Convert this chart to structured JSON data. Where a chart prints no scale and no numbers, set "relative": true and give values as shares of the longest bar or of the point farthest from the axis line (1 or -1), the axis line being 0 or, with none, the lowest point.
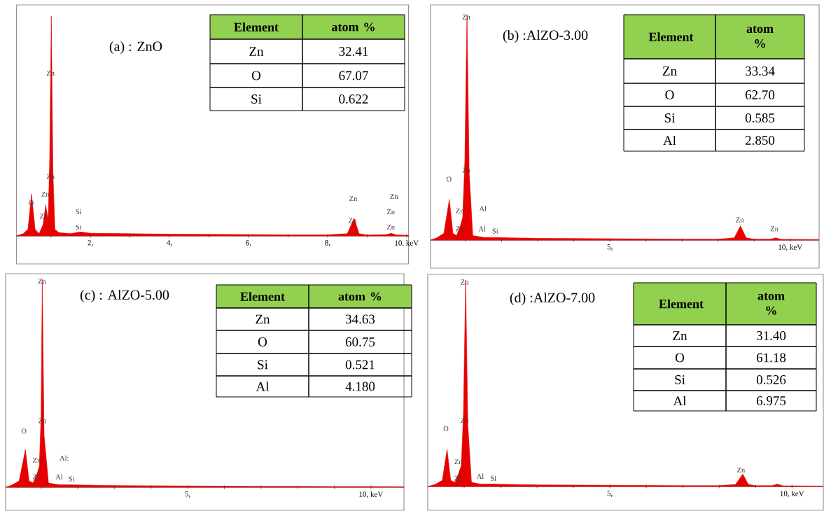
{
  "chart_data": [
    {
      "type": "area",
      "title": "(a) : ZnO",
      "relative": true,
      "color": "#e60000",
      "x": [
        0.13,
        0.3,
        0.42,
        0.51,
        0.6,
        0.7,
        0.8,
        0.87,
        0.93,
        0.97,
        1.01,
        1.05,
        1.1,
        1.2,
        1.5,
        1.74,
        2,
        3,
        4,
        5,
        6,
        7,
        8,
        8.5,
        8.67,
        8.8,
        9.0,
        9.5,
        9.61,
        9.75,
        10.05
      ],
      "values": [
        0,
        0.01,
        0.03,
        0.19,
        0.03,
        0.01,
        0.05,
        0.14,
        0.07,
        0.35,
        1,
        0.3,
        0.03,
        0.015,
        0.01,
        0.018,
        0.012,
        0.01,
        0.008,
        0.007,
        0.006,
        0.005,
        0.005,
        0.01,
        0.08,
        0.01,
        0.004,
        0.006,
        0.012,
        0.004,
        0.003
      ],
      "xlim": [
        0.13,
        10.05
      ],
      "xticks": [
        {
          "value": 1,
          "label": null
        },
        {
          "value": 2,
          "label": "2,"
        },
        {
          "value": 3,
          "label": null
        },
        {
          "value": 4,
          "label": "4,"
        },
        {
          "value": 5,
          "label": null
        },
        {
          "value": 6,
          "label": "6,"
        },
        {
          "value": 7,
          "label": null
        },
        {
          "value": 8,
          "label": "8,"
        },
        {
          "value": 9,
          "label": null
        },
        {
          "value": 10,
          "label": "10, keV"
        }
      ],
      "annotations": [
        "Element",
        "atom %",
        "Zn",
        "32.41",
        "O",
        "67.07",
        "Si",
        "0.622",
        "Zn",
        "Zn",
        "Zn",
        "O",
        "Zn",
        "Si",
        "Si",
        "Zn",
        "Zn",
        "Zn",
        "Zn",
        "Zn"
      ]
    },
    {
      "type": "area",
      "title": "(b) :AlZO-3.00",
      "relative": true,
      "color": "#e60000",
      "x": [
        0.03,
        0.2,
        0.4,
        0.55,
        0.65,
        0.75,
        0.85,
        0.92,
        0.98,
        1.04,
        1.1,
        1.2,
        1.5,
        1.86,
        2.2,
        3,
        4,
        5,
        6,
        7,
        8,
        8.45,
        8.62,
        8.78,
        9.0,
        9.45,
        9.6,
        9.75,
        10,
        10.8
      ],
      "values": [
        0,
        0.01,
        0.03,
        0.18,
        0.03,
        0.02,
        0.06,
        0.1,
        0.35,
        1,
        0.3,
        0.02,
        0.012,
        0.012,
        0.01,
        0.008,
        0.007,
        0.006,
        0.005,
        0.004,
        0.004,
        0.01,
        0.063,
        0.01,
        0.004,
        0.004,
        0.01,
        0.003,
        0.003,
        0.002
      ],
      "xlim": [
        0.03,
        10.8
      ],
      "xticks": [
        {
          "value": 1,
          "label": null
        },
        {
          "value": 2,
          "label": null
        },
        {
          "value": 3,
          "label": null
        },
        {
          "value": 4,
          "label": null
        },
        {
          "value": 5,
          "label": "5,"
        },
        {
          "value": 6,
          "label": null
        },
        {
          "value": 7,
          "label": null
        },
        {
          "value": 8,
          "label": null
        },
        {
          "value": 9,
          "label": null
        },
        {
          "value": 10,
          "label": "10, keV"
        }
      ],
      "annotations": [
        "Element",
        "atom %",
        "Zn",
        "33.34",
        "O",
        "62.70",
        "Si",
        "0.585",
        "Al",
        "2.850",
        "Zn",
        "Zn",
        "O",
        "Zn",
        "Zn",
        "Al",
        "Al",
        "Si",
        "Zn",
        "Zn"
      ]
    },
    {
      "type": "area",
      "title": "(c) : AlZO-5.00",
      "relative": true,
      "color": "#e60000",
      "x": [
        0.03,
        0.2,
        0.4,
        0.57,
        0.67,
        0.78,
        0.88,
        0.95,
        1.0,
        1.03,
        1.08,
        1.2,
        1.49,
        1.74,
        2.2,
        3,
        4,
        5,
        6,
        7,
        8,
        9,
        10,
        10.9
      ],
      "values": [
        0,
        0.01,
        0.03,
        0.18,
        0.03,
        0.02,
        0.06,
        0.1,
        0.35,
        1,
        0.25,
        0.02,
        0.012,
        0.012,
        0.01,
        0.008,
        0.007,
        0.006,
        0.005,
        0.004,
        0.004,
        0.003,
        0.003,
        0.002
      ],
      "xlim": [
        0.03,
        10.9
      ],
      "xticks": [
        {
          "value": 1,
          "label": null
        },
        {
          "value": 2,
          "label": null
        },
        {
          "value": 3,
          "label": null
        },
        {
          "value": 4,
          "label": null
        },
        {
          "value": 5,
          "label": "5,"
        },
        {
          "value": 6,
          "label": null
        },
        {
          "value": 7,
          "label": null
        },
        {
          "value": 8,
          "label": null
        },
        {
          "value": 9,
          "label": null
        },
        {
          "value": 10,
          "label": "10, keV"
        }
      ],
      "annotations": [
        "Element",
        "atom %",
        "Zn",
        "34.63",
        "O",
        "60.75",
        "Si",
        "0.521",
        "Al",
        "4.180",
        "Zn",
        "Zn",
        "O",
        "Zn",
        "Zn",
        "Al:",
        "Al",
        "Si"
      ]
    },
    {
      "type": "area",
      "title": "(d) :AlZO-7.00",
      "relative": true,
      "color": "#e60000",
      "x": [
        0,
        0.2,
        0.4,
        0.53,
        0.63,
        0.75,
        0.84,
        0.92,
        0.98,
        1.04,
        1.1,
        1.2,
        1.44,
        1.8,
        2.2,
        3,
        4,
        5,
        6,
        7,
        8,
        8.45,
        8.65,
        8.8,
        9.0,
        9.45,
        9.6,
        9.75,
        10,
        10.86
      ],
      "values": [
        0,
        0.01,
        0.03,
        0.18,
        0.03,
        0.02,
        0.06,
        0.1,
        0.35,
        1,
        0.3,
        0.02,
        0.012,
        0.012,
        0.01,
        0.008,
        0.007,
        0.006,
        0.005,
        0.004,
        0.004,
        0.01,
        0.06,
        0.01,
        0.004,
        0.004,
        0.012,
        0.003,
        0.003,
        0.002
      ],
      "xlim": [
        0,
        10.86
      ],
      "xticks": [
        {
          "value": 1,
          "label": null
        },
        {
          "value": 2,
          "label": null
        },
        {
          "value": 3,
          "label": null
        },
        {
          "value": 4,
          "label": null
        },
        {
          "value": 5,
          "label": "5,"
        },
        {
          "value": 6,
          "label": null
        },
        {
          "value": 7,
          "label": null
        },
        {
          "value": 8,
          "label": null
        },
        {
          "value": 9,
          "label": null
        },
        {
          "value": 10,
          "label": "10, keV"
        }
      ],
      "annotations": [
        "Element",
        "atom %",
        "Zn",
        "31.40",
        "O",
        "61.18",
        "Si",
        "0.526",
        "Al",
        "6.975",
        "Zn",
        "Zn",
        "O",
        "Zn",
        "Zn",
        "Al",
        "Si",
        "Zn"
      ]
    }
  ]
}
